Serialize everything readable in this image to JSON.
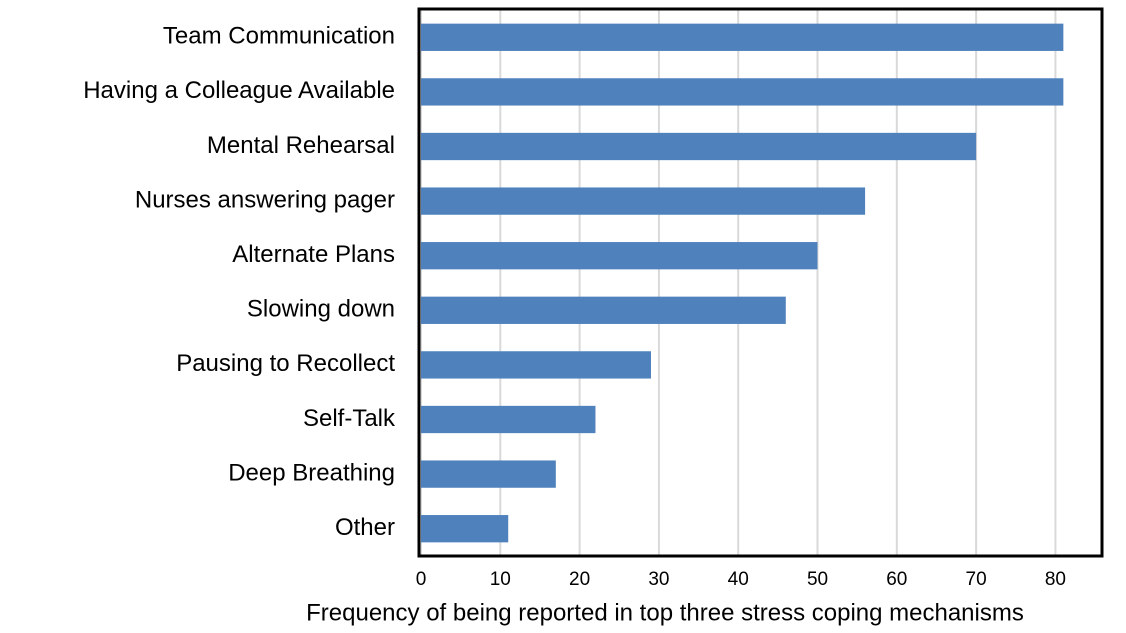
{
  "chart_data": {
    "type": "barh",
    "categories": [
      "Team Communication",
      "Having a Colleague Available",
      "Mental Rehearsal",
      "Nurses answering pager",
      "Alternate Plans",
      "Slowing down",
      "Pausing to Recollect",
      "Self-Talk",
      "Deep Breathing",
      "Other"
    ],
    "values": [
      81,
      81,
      70,
      56,
      50,
      46,
      29,
      22,
      17,
      11
    ],
    "color": "#4f81bd",
    "xlabel": "Frequency of being reported in top three stress coping mechanisms",
    "xlim": [
      0,
      86
    ],
    "xticks": [
      0,
      10,
      20,
      30,
      40,
      50,
      60,
      70,
      80
    ],
    "grid": true
  }
}
